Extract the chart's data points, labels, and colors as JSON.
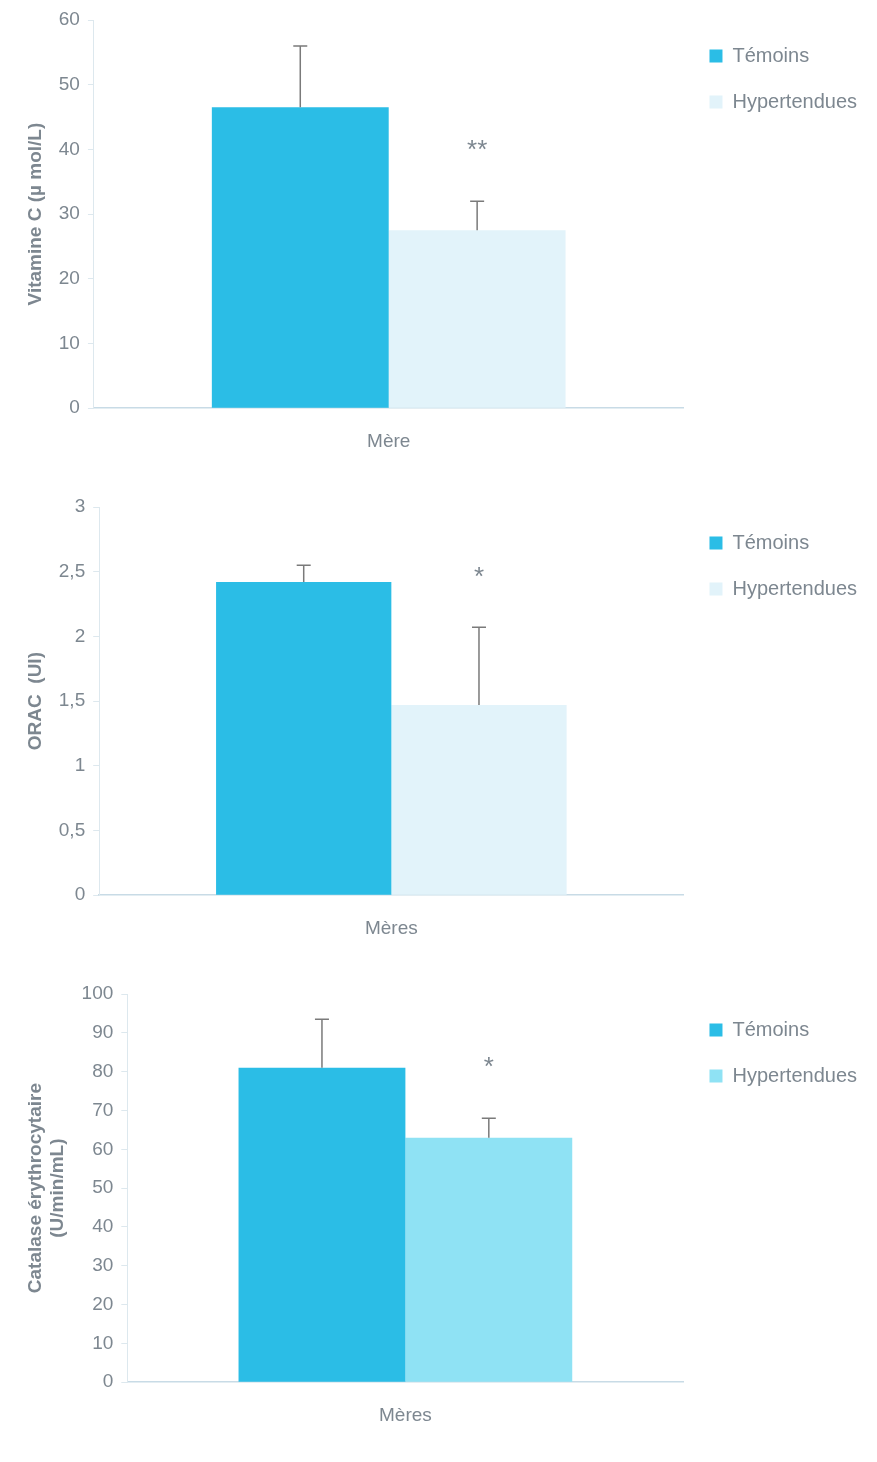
{
  "chart_data": [
    {
      "type": "bar",
      "ylabel": "Vitamine C (µ mol/L)",
      "categories": [
        "Mère"
      ],
      "legend": "top right",
      "grid": false,
      "ylim": [
        0,
        60
      ],
      "yticks": [
        0,
        10,
        20,
        30,
        40,
        50,
        60
      ],
      "series": [
        {
          "name": "Témoins",
          "color": "#2bbde6",
          "values": [
            46.5
          ],
          "errors": [
            9.5
          ]
        },
        {
          "name": "Hypertendues",
          "color": "#e2f3fa",
          "values": [
            27.5
          ],
          "errors": [
            4.5
          ]
        }
      ],
      "annotations": [
        "**"
      ]
    },
    {
      "type": "bar",
      "ylabel": "ORAC  (UI)",
      "categories": [
        "Mères"
      ],
      "legend": "top right",
      "grid": false,
      "ylim": [
        0,
        3
      ],
      "yticks": [
        0,
        {
          "value": 0.5,
          "label": "0,5"
        },
        1,
        {
          "value": 1.5,
          "label": "1,5"
        },
        2,
        {
          "value": 2.5,
          "label": "2,5"
        },
        3
      ],
      "series": [
        {
          "name": "Témoins",
          "color": "#2bbde6",
          "values": [
            2.42
          ],
          "errors": [
            0.13
          ]
        },
        {
          "name": "Hypertendues",
          "color": "#e2f3fa",
          "values": [
            1.47
          ],
          "errors": [
            0.6
          ]
        }
      ],
      "annotations": [
        "*"
      ]
    },
    {
      "type": "bar",
      "ylabel": "Catalase érythrocytaire\n(U/min/mL)",
      "categories": [
        "Mères"
      ],
      "legend": "top right",
      "grid": false,
      "ylim": [
        0,
        100
      ],
      "yticks": [
        0,
        10,
        20,
        30,
        40,
        50,
        60,
        70,
        80,
        90,
        100
      ],
      "series": [
        {
          "name": "Témoins",
          "color": "#2bbde6",
          "values": [
            81
          ],
          "errors": [
            12.5
          ]
        },
        {
          "name": "Hypertendues",
          "color": "#8fe2f4",
          "values": [
            63
          ],
          "errors": [
            5
          ]
        }
      ],
      "annotations": [
        "*"
      ]
    }
  ]
}
